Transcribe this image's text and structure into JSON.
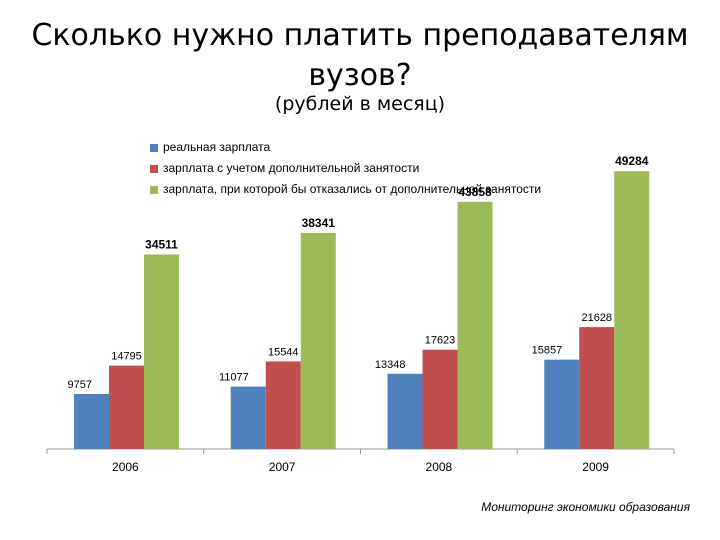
{
  "title": "Сколько нужно платить преподавателям вузов?",
  "subtitle": "(рублей в месяц)",
  "source_note": "Мониторинг экономики образования",
  "colors": {
    "series1": "#4f81bd",
    "series2": "#c0504d",
    "series3": "#9bbb59",
    "axis": "#999999"
  },
  "chart_data": {
    "type": "bar",
    "categories": [
      "2006",
      "2007",
      "2008",
      "2009"
    ],
    "series": [
      {
        "name": "реальная зарплата",
        "values": [
          9757,
          11077,
          13348,
          15857
        ]
      },
      {
        "name": "зарплата с учетом дополнительной занятости",
        "values": [
          14795,
          15544,
          17623,
          21628
        ]
      },
      {
        "name": "зарплата, при которой бы отказались от дополнительной занятости",
        "values": [
          34511,
          38341,
          43858,
          49284
        ]
      }
    ],
    "value_labels": [
      [
        "9757",
        "11077",
        "13348",
        "15857"
      ],
      [
        "14795",
        "15544",
        "17623",
        "21628"
      ],
      [
        "34511",
        "38341",
        "43858",
        "49284"
      ]
    ],
    "ylim": [
      0,
      55000
    ],
    "grid": false,
    "legend_position": "top"
  }
}
